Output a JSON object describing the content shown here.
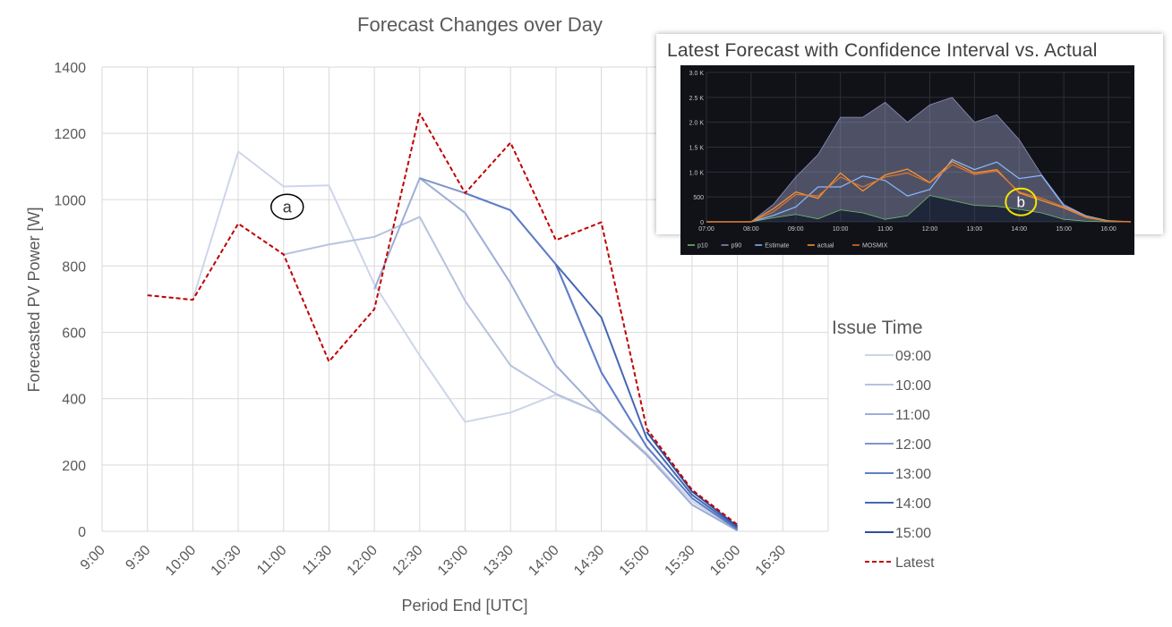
{
  "chart_data": [
    {
      "type": "line",
      "title": "Forecast Changes over Day",
      "xlabel": "Period End [UTC]",
      "ylabel": "Forecasted PV Power [W]",
      "ylim": [
        0,
        1400
      ],
      "yticks": [
        0,
        200,
        400,
        600,
        800,
        1000,
        1200,
        1400
      ],
      "categories": [
        "9:00",
        "9:30",
        "10:00",
        "10:30",
        "11:00",
        "11:30",
        "12:00",
        "12:30",
        "13:00",
        "13:30",
        "14:00",
        "14:30",
        "15:00",
        "15:30",
        "16:00",
        "16:30"
      ],
      "grid": true,
      "legend_title": "Issue Time",
      "legend_position": "right",
      "series": [
        {
          "name": "09:00",
          "color": "#cdd5e9",
          "dash": false,
          "values": [
            null,
            null,
            700,
            1145,
            1040,
            1043,
            745,
            530,
            330,
            358,
            412,
            355,
            235,
            90,
            5,
            null
          ]
        },
        {
          "name": "10:00",
          "color": "#b7c2df",
          "dash": false,
          "values": [
            null,
            null,
            null,
            null,
            835,
            865,
            888,
            948,
            695,
            500,
            415,
            355,
            230,
            80,
            2,
            null
          ]
        },
        {
          "name": "11:00",
          "color": "#9eaed6",
          "dash": false,
          "values": [
            null,
            null,
            null,
            null,
            null,
            null,
            730,
            1065,
            960,
            748,
            500,
            355,
            230,
            80,
            2,
            null
          ]
        },
        {
          "name": "12:00",
          "color": "#7f95cb",
          "dash": false,
          "values": [
            null,
            null,
            null,
            null,
            null,
            null,
            null,
            1065,
            1020,
            968,
            805,
            480,
            255,
            100,
            5,
            null
          ]
        },
        {
          "name": "13:00",
          "color": "#5f7ec8",
          "dash": false,
          "values": [
            null,
            null,
            null,
            null,
            null,
            null,
            null,
            null,
            1020,
            968,
            805,
            480,
            255,
            100,
            5,
            null
          ]
        },
        {
          "name": "14:00",
          "color": "#4667b2",
          "dash": false,
          "values": [
            null,
            null,
            null,
            null,
            null,
            null,
            null,
            null,
            null,
            null,
            805,
            645,
            280,
            110,
            10,
            null
          ]
        },
        {
          "name": "15:00",
          "color": "#2f4f9c",
          "dash": false,
          "values": [
            null,
            null,
            null,
            null,
            null,
            null,
            null,
            null,
            null,
            null,
            null,
            null,
            300,
            120,
            15,
            null
          ]
        },
        {
          "name": "Latest",
          "color": "#c00000",
          "dash": true,
          "values": [
            null,
            712,
            698,
            928,
            835,
            512,
            670,
            1260,
            1020,
            1172,
            878,
            932,
            310,
            125,
            20,
            null
          ]
        }
      ],
      "annotations": [
        {
          "label": "a",
          "at_category": "11:00",
          "at_value": 1000
        }
      ]
    },
    {
      "type": "area",
      "title": "Latest Forecast with Confidence Interval vs. Actual",
      "ylim": [
        0,
        3000
      ],
      "yticks": [
        "0",
        "500",
        "1.0 K",
        "1.5 K",
        "2.0 K",
        "2.5 K",
        "3.0 K"
      ],
      "x": [
        "07:00",
        "07:30",
        "08:00",
        "08:30",
        "09:00",
        "09:30",
        "10:00",
        "10:30",
        "11:00",
        "11:30",
        "12:00",
        "12:30",
        "13:00",
        "13:30",
        "14:00",
        "14:30",
        "15:00",
        "15:30",
        "16:00",
        "16:30"
      ],
      "xticks": [
        "07:00",
        "08:00",
        "09:00",
        "10:00",
        "11:00",
        "12:00",
        "13:00",
        "14:00",
        "15:00",
        "16:00"
      ],
      "legend_position": "bottom-left",
      "series": [
        {
          "name": "p10",
          "color": "#73bf69",
          "values": [
            0,
            0,
            0,
            80,
            150,
            60,
            240,
            180,
            50,
            120,
            530,
            430,
            330,
            310,
            250,
            180,
            50,
            10,
            0,
            0
          ]
        },
        {
          "name": "p90",
          "color": "#8f8fbf",
          "values": [
            0,
            0,
            0,
            350,
            900,
            1350,
            2100,
            2100,
            2400,
            2000,
            2350,
            2500,
            2000,
            2150,
            1650,
            950,
            350,
            120,
            20,
            0
          ]
        },
        {
          "name": "Estimate",
          "color": "#8ab8ff",
          "values": [
            0,
            0,
            0,
            130,
            300,
            700,
            700,
            920,
            830,
            520,
            650,
            1250,
            1050,
            1200,
            870,
            930,
            320,
            120,
            20,
            0
          ]
        },
        {
          "name": "actual",
          "color": "#ff9830",
          "values": [
            0,
            0,
            0,
            260,
            600,
            470,
            980,
            620,
            940,
            1060,
            790,
            1210,
            980,
            1050,
            580,
            430,
            280,
            90,
            10,
            0
          ]
        },
        {
          "name": "MOSMIX",
          "color": "#e0752d",
          "values": [
            0,
            0,
            0,
            200,
            550,
            520,
            900,
            700,
            900,
            980,
            780,
            1150,
            950,
            1020,
            600,
            470,
            300,
            100,
            10,
            0
          ]
        }
      ],
      "annotations": [
        {
          "label": "b",
          "at": "14:00",
          "at_value": 400
        }
      ]
    }
  ]
}
